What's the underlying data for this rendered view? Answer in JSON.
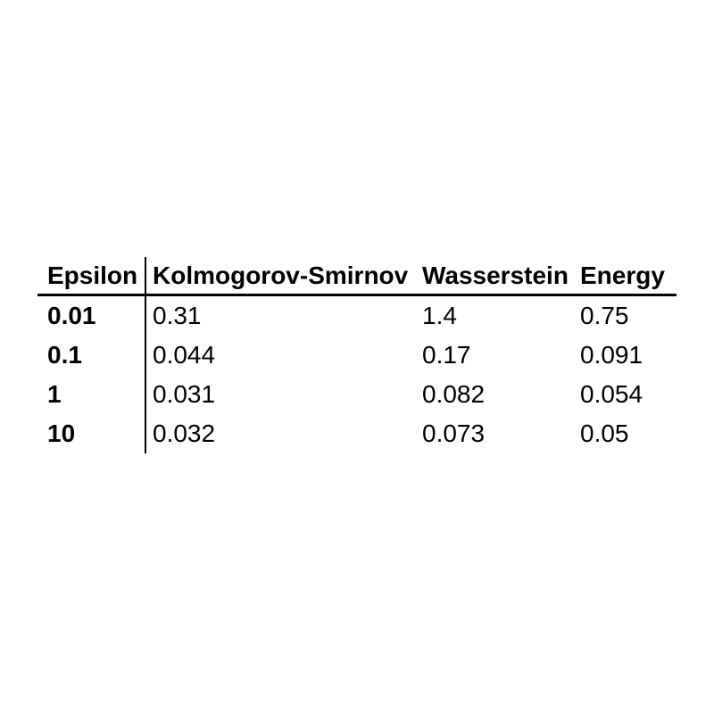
{
  "page": {
    "background_color": "#ffffff",
    "text_color": "#000000"
  },
  "table": {
    "header": {
      "index_label": "Epsilon",
      "columns": [
        "Kolmogorov-Smirnov",
        "Wasserstein",
        "Energy"
      ]
    },
    "rows": [
      {
        "epsilon": "0.01",
        "values": [
          "0.31",
          "1.4",
          "0.75"
        ]
      },
      {
        "epsilon": "0.1",
        "values": [
          "0.044",
          "0.17",
          "0.091"
        ]
      },
      {
        "epsilon": "1",
        "values": [
          "0.031",
          "0.082",
          "0.054"
        ]
      },
      {
        "epsilon": "10",
        "values": [
          "0.032",
          "0.073",
          "0.05"
        ]
      }
    ]
  },
  "chart_data": {
    "type": "table",
    "title": "",
    "index_label": "Epsilon",
    "columns": [
      "Kolmogorov-Smirnov",
      "Wasserstein",
      "Energy"
    ],
    "index": [
      0.01,
      0.1,
      1,
      10
    ],
    "series": [
      {
        "name": "Kolmogorov-Smirnov",
        "values": [
          0.31,
          0.044,
          0.031,
          0.032
        ]
      },
      {
        "name": "Wasserstein",
        "values": [
          1.4,
          0.17,
          0.082,
          0.073
        ]
      },
      {
        "name": "Energy",
        "values": [
          0.75,
          0.091,
          0.054,
          0.05
        ]
      }
    ]
  }
}
